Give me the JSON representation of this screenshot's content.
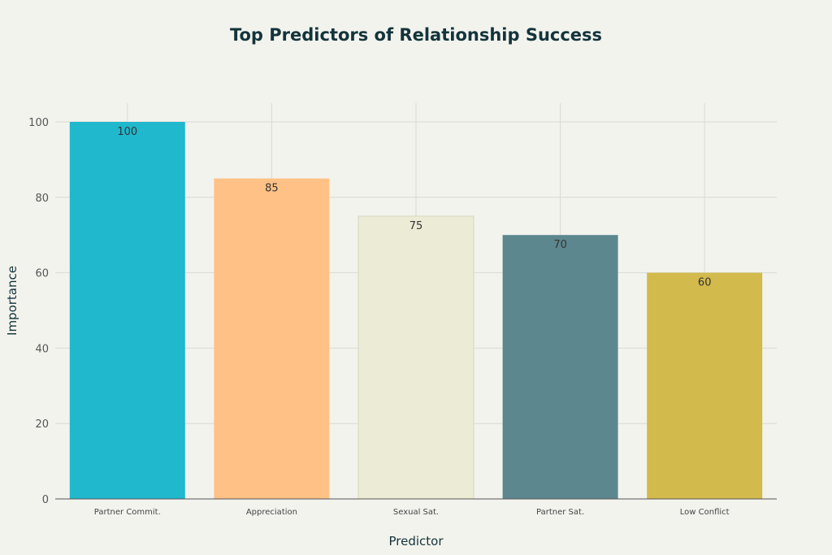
{
  "chart_data": {
    "type": "bar",
    "title": "Top Predictors of Relationship Success",
    "xlabel": "Predictor",
    "ylabel": "Importance",
    "categories": [
      "Partner Commit.",
      "Appreciation",
      "Sexual Sat.",
      "Partner Sat.",
      "Low Conflict"
    ],
    "values": [
      100,
      85,
      75,
      70,
      60
    ],
    "data_labels": [
      "100",
      "85",
      "75",
      "70",
      "60"
    ],
    "colors": [
      "#1FB8CD",
      "#FFC185",
      "#ECEBD5",
      "#5D878F",
      "#D2BA4C"
    ],
    "ylim": [
      0,
      105
    ],
    "yticks": [
      0,
      20,
      40,
      60,
      80,
      100
    ],
    "grid": true,
    "legend": "none"
  }
}
